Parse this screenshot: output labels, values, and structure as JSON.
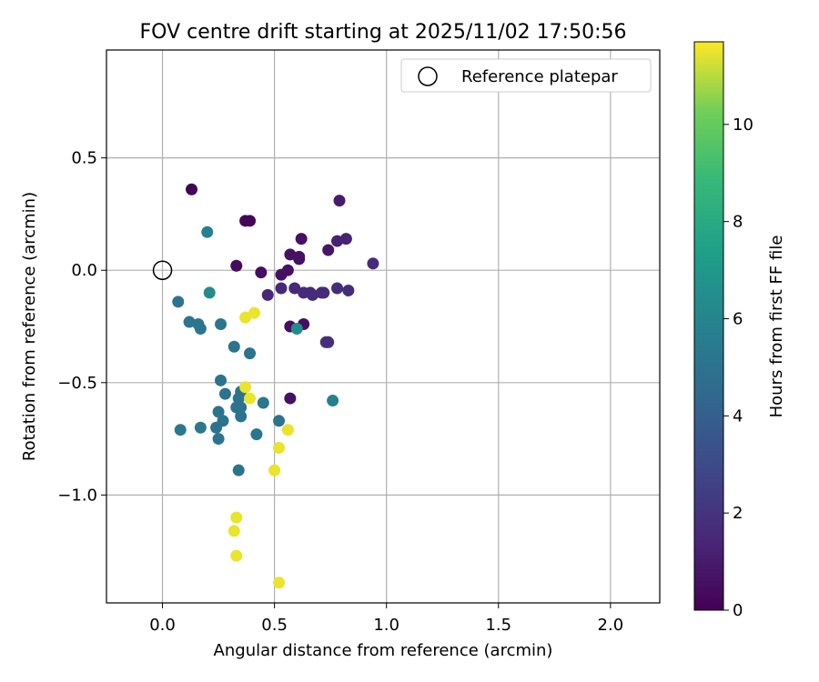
{
  "chart_data": {
    "type": "scatter",
    "title": "FOV centre drift starting at 2025/11/02 17:50:56",
    "xlabel": "Angular distance from reference (arcmin)",
    "ylabel": "Rotation from reference (arcmin)",
    "xlim": [
      -0.25,
      2.22
    ],
    "ylim": [
      -1.48,
      0.98
    ],
    "xticks": [
      0.0,
      0.5,
      1.0,
      1.5,
      2.0
    ],
    "xtick_labels": [
      "0.0",
      "0.5",
      "1.0",
      "1.5",
      "2.0"
    ],
    "yticks": [
      0.5,
      0.0,
      -0.5,
      -1.0
    ],
    "ytick_labels": [
      "0.5",
      "0.0",
      "−0.5",
      "−1.0"
    ],
    "grid": true,
    "legend": {
      "position": "top-right",
      "entries": [
        "Reference platepar"
      ]
    },
    "reference_point": {
      "x": 0.0,
      "y": 0.0,
      "label": "Reference platepar"
    },
    "colorbar": {
      "label": "Hours from first FF file",
      "range": [
        0,
        11.7
      ],
      "ticks": [
        0,
        2,
        4,
        6,
        8,
        10
      ],
      "tick_labels": [
        "0",
        "2",
        "4",
        "6",
        "8",
        "10"
      ]
    },
    "points": [
      {
        "x": 0.13,
        "y": 0.36,
        "t": 0.1
      },
      {
        "x": 0.37,
        "y": 0.22,
        "t": 0.2
      },
      {
        "x": 0.39,
        "y": 0.22,
        "t": 0.2
      },
      {
        "x": 0.33,
        "y": 0.02,
        "t": 0.4
      },
      {
        "x": 0.44,
        "y": -0.01,
        "t": 0.5
      },
      {
        "x": 0.53,
        "y": -0.02,
        "t": 0.6
      },
      {
        "x": 0.56,
        "y": 0.0,
        "t": 0.6
      },
      {
        "x": 0.57,
        "y": 0.07,
        "t": 0.6
      },
      {
        "x": 0.62,
        "y": 0.14,
        "t": 0.6
      },
      {
        "x": 0.61,
        "y": 0.05,
        "t": 0.6
      },
      {
        "x": 0.61,
        "y": 0.06,
        "t": 0.6
      },
      {
        "x": 0.57,
        "y": -0.25,
        "t": 0.5
      },
      {
        "x": 0.63,
        "y": -0.24,
        "t": 0.5
      },
      {
        "x": 0.57,
        "y": -0.57,
        "t": 0.6
      },
      {
        "x": 0.74,
        "y": 0.09,
        "t": 0.8
      },
      {
        "x": 0.79,
        "y": 0.31,
        "t": 1.0
      },
      {
        "x": 0.78,
        "y": 0.13,
        "t": 1.2
      },
      {
        "x": 0.82,
        "y": 0.14,
        "t": 1.3
      },
      {
        "x": 0.94,
        "y": 0.03,
        "t": 1.6
      },
      {
        "x": 0.47,
        "y": -0.11,
        "t": 1.5
      },
      {
        "x": 0.53,
        "y": -0.08,
        "t": 1.5
      },
      {
        "x": 0.59,
        "y": -0.08,
        "t": 1.5
      },
      {
        "x": 0.63,
        "y": -0.1,
        "t": 1.6
      },
      {
        "x": 0.66,
        "y": -0.1,
        "t": 1.6
      },
      {
        "x": 0.67,
        "y": -0.11,
        "t": 1.6
      },
      {
        "x": 0.71,
        "y": -0.1,
        "t": 1.6
      },
      {
        "x": 0.72,
        "y": -0.1,
        "t": 1.6
      },
      {
        "x": 0.78,
        "y": -0.08,
        "t": 1.7
      },
      {
        "x": 0.83,
        "y": -0.09,
        "t": 1.7
      },
      {
        "x": 0.73,
        "y": -0.32,
        "t": 1.8
      },
      {
        "x": 0.74,
        "y": -0.32,
        "t": 1.8
      },
      {
        "x": 0.2,
        "y": 0.17,
        "t": 5.8
      },
      {
        "x": 0.21,
        "y": -0.1,
        "t": 6.3
      },
      {
        "x": 0.07,
        "y": -0.14,
        "t": 5.0
      },
      {
        "x": 0.12,
        "y": -0.23,
        "t": 5.2
      },
      {
        "x": 0.16,
        "y": -0.24,
        "t": 5.2
      },
      {
        "x": 0.17,
        "y": -0.26,
        "t": 5.2
      },
      {
        "x": 0.26,
        "y": -0.24,
        "t": 5.2
      },
      {
        "x": 0.32,
        "y": -0.34,
        "t": 5.0
      },
      {
        "x": 0.39,
        "y": -0.37,
        "t": 5.0
      },
      {
        "x": 0.6,
        "y": -0.26,
        "t": 6.4
      },
      {
        "x": 0.26,
        "y": -0.49,
        "t": 5.0
      },
      {
        "x": 0.28,
        "y": -0.55,
        "t": 5.0
      },
      {
        "x": 0.35,
        "y": -0.54,
        "t": 5.0
      },
      {
        "x": 0.34,
        "y": -0.57,
        "t": 5.0
      },
      {
        "x": 0.33,
        "y": -0.61,
        "t": 5.0
      },
      {
        "x": 0.35,
        "y": -0.61,
        "t": 5.0
      },
      {
        "x": 0.35,
        "y": -0.65,
        "t": 5.0
      },
      {
        "x": 0.45,
        "y": -0.59,
        "t": 5.2
      },
      {
        "x": 0.25,
        "y": -0.63,
        "t": 5.0
      },
      {
        "x": 0.27,
        "y": -0.67,
        "t": 5.0
      },
      {
        "x": 0.24,
        "y": -0.7,
        "t": 5.0
      },
      {
        "x": 0.17,
        "y": -0.7,
        "t": 5.3
      },
      {
        "x": 0.08,
        "y": -0.71,
        "t": 5.3
      },
      {
        "x": 0.25,
        "y": -0.75,
        "t": 5.0
      },
      {
        "x": 0.42,
        "y": -0.73,
        "t": 5.2
      },
      {
        "x": 0.52,
        "y": -0.67,
        "t": 5.0
      },
      {
        "x": 0.76,
        "y": -0.58,
        "t": 5.8
      },
      {
        "x": 0.34,
        "y": -0.89,
        "t": 5.0
      },
      {
        "x": 0.37,
        "y": -0.21,
        "t": 11.5
      },
      {
        "x": 0.41,
        "y": -0.19,
        "t": 11.5
      },
      {
        "x": 0.37,
        "y": -0.52,
        "t": 11.5
      },
      {
        "x": 0.39,
        "y": -0.57,
        "t": 11.5
      },
      {
        "x": 0.56,
        "y": -0.71,
        "t": 11.5
      },
      {
        "x": 0.52,
        "y": -0.79,
        "t": 11.5
      },
      {
        "x": 0.5,
        "y": -0.89,
        "t": 11.5
      },
      {
        "x": 0.33,
        "y": -1.1,
        "t": 11.5
      },
      {
        "x": 0.32,
        "y": -1.16,
        "t": 11.5
      },
      {
        "x": 0.33,
        "y": -1.27,
        "t": 11.5
      },
      {
        "x": 0.52,
        "y": -1.39,
        "t": 11.5
      }
    ]
  }
}
